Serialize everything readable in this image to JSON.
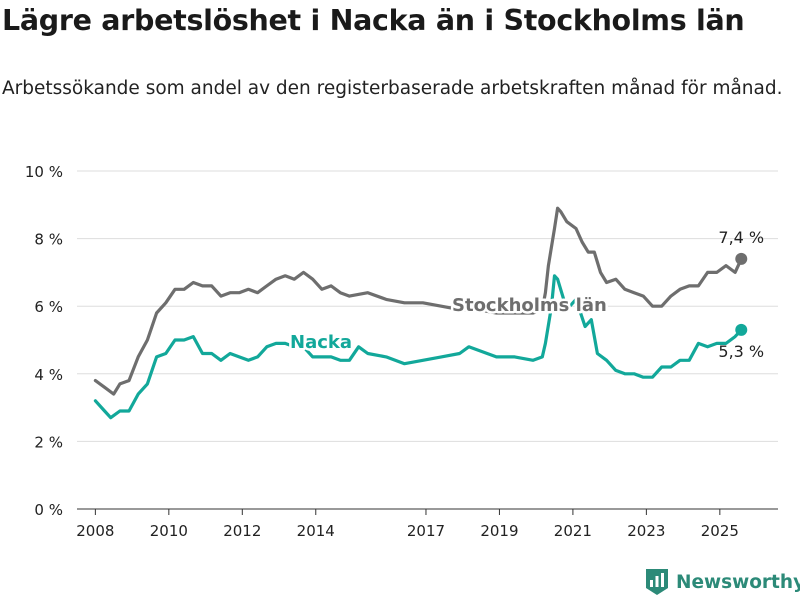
{
  "title": "Lägre arbetslöshet i Nacka än i Stockholms län",
  "subtitle": "Arbetssökande som andel av den registerbaserade arbetskraften månad för månad.",
  "logo": {
    "text": "Newsworthy",
    "icon": "bar-chart-logo-icon",
    "color": "#2c8a78"
  },
  "colors": {
    "nacka": "#12a89a",
    "stockholm": "#6e6e6e",
    "grid": "#dddddd",
    "text": "#222222"
  },
  "chart_data": {
    "type": "line",
    "ylim": [
      0,
      10
    ],
    "yticks": [
      {
        "value": 0,
        "label": "0 %"
      },
      {
        "value": 2,
        "label": "2 %"
      },
      {
        "value": 4,
        "label": "4 %"
      },
      {
        "value": 6,
        "label": "6 %"
      },
      {
        "value": 8,
        "label": "8 %"
      },
      {
        "value": 10,
        "label": "10 %"
      }
    ],
    "xlim": [
      "2007-07",
      "2026-08"
    ],
    "xticks": [
      {
        "value": "2008-01",
        "label": "2008"
      },
      {
        "value": "2010-01",
        "label": "2010"
      },
      {
        "value": "2012-01",
        "label": "2012"
      },
      {
        "value": "2014-01",
        "label": "2014"
      },
      {
        "value": "2017-01",
        "label": "2017"
      },
      {
        "value": "2019-01",
        "label": "2019"
      },
      {
        "value": "2021-01",
        "label": "2021"
      },
      {
        "value": "2023-01",
        "label": "2023"
      },
      {
        "value": "2025-01",
        "label": "2025"
      }
    ],
    "series": [
      {
        "name": "Stockholms län",
        "color": "#6e6e6e",
        "end_label": "7,4 %",
        "points": [
          [
            "2008-01",
            3.8
          ],
          [
            "2008-04",
            3.6
          ],
          [
            "2008-07",
            3.4
          ],
          [
            "2008-09",
            3.7
          ],
          [
            "2008-12",
            3.8
          ],
          [
            "2009-03",
            4.5
          ],
          [
            "2009-06",
            5.0
          ],
          [
            "2009-09",
            5.8
          ],
          [
            "2009-12",
            6.1
          ],
          [
            "2010-03",
            6.5
          ],
          [
            "2010-06",
            6.5
          ],
          [
            "2010-09",
            6.7
          ],
          [
            "2010-12",
            6.6
          ],
          [
            "2011-03",
            6.6
          ],
          [
            "2011-06",
            6.3
          ],
          [
            "2011-09",
            6.4
          ],
          [
            "2011-12",
            6.4
          ],
          [
            "2012-03",
            6.5
          ],
          [
            "2012-06",
            6.4
          ],
          [
            "2012-09",
            6.6
          ],
          [
            "2012-12",
            6.8
          ],
          [
            "2013-03",
            6.9
          ],
          [
            "2013-06",
            6.8
          ],
          [
            "2013-09",
            7.0
          ],
          [
            "2013-12",
            6.8
          ],
          [
            "2014-03",
            6.5
          ],
          [
            "2014-06",
            6.6
          ],
          [
            "2014-09",
            6.4
          ],
          [
            "2014-12",
            6.3
          ],
          [
            "2015-06",
            6.4
          ],
          [
            "2015-12",
            6.2
          ],
          [
            "2016-06",
            6.1
          ],
          [
            "2016-12",
            6.1
          ],
          [
            "2017-06",
            6.0
          ],
          [
            "2017-12",
            5.9
          ],
          [
            "2018-06",
            5.9
          ],
          [
            "2018-12",
            5.8
          ],
          [
            "2019-06",
            5.8
          ],
          [
            "2019-12",
            5.8
          ],
          [
            "2020-03",
            5.9
          ],
          [
            "2020-04",
            6.4
          ],
          [
            "2020-05",
            7.2
          ],
          [
            "2020-07",
            8.3
          ],
          [
            "2020-08",
            8.9
          ],
          [
            "2020-09",
            8.8
          ],
          [
            "2020-11",
            8.5
          ],
          [
            "2021-02",
            8.3
          ],
          [
            "2021-04",
            7.9
          ],
          [
            "2021-06",
            7.6
          ],
          [
            "2021-08",
            7.6
          ],
          [
            "2021-10",
            7.0
          ],
          [
            "2021-12",
            6.7
          ],
          [
            "2022-03",
            6.8
          ],
          [
            "2022-06",
            6.5
          ],
          [
            "2022-09",
            6.4
          ],
          [
            "2022-12",
            6.3
          ],
          [
            "2023-03",
            6.0
          ],
          [
            "2023-06",
            6.0
          ],
          [
            "2023-09",
            6.3
          ],
          [
            "2023-12",
            6.5
          ],
          [
            "2024-03",
            6.6
          ],
          [
            "2024-06",
            6.6
          ],
          [
            "2024-09",
            7.0
          ],
          [
            "2024-12",
            7.0
          ],
          [
            "2025-03",
            7.2
          ],
          [
            "2025-06",
            7.0
          ],
          [
            "2025-08",
            7.4
          ]
        ]
      },
      {
        "name": "Nacka",
        "color": "#12a89a",
        "end_label": "5,3 %",
        "points": [
          [
            "2008-01",
            3.2
          ],
          [
            "2008-04",
            2.9
          ],
          [
            "2008-06",
            2.7
          ],
          [
            "2008-09",
            2.9
          ],
          [
            "2008-12",
            2.9
          ],
          [
            "2009-03",
            3.4
          ],
          [
            "2009-06",
            3.7
          ],
          [
            "2009-09",
            4.5
          ],
          [
            "2009-12",
            4.6
          ],
          [
            "2010-03",
            5.0
          ],
          [
            "2010-06",
            5.0
          ],
          [
            "2010-09",
            5.1
          ],
          [
            "2010-12",
            4.6
          ],
          [
            "2011-03",
            4.6
          ],
          [
            "2011-06",
            4.4
          ],
          [
            "2011-09",
            4.6
          ],
          [
            "2011-12",
            4.5
          ],
          [
            "2012-03",
            4.4
          ],
          [
            "2012-06",
            4.5
          ],
          [
            "2012-09",
            4.8
          ],
          [
            "2012-12",
            4.9
          ],
          [
            "2013-03",
            4.9
          ],
          [
            "2013-06",
            4.8
          ],
          [
            "2013-09",
            4.8
          ],
          [
            "2013-12",
            4.5
          ],
          [
            "2014-03",
            4.5
          ],
          [
            "2014-06",
            4.5
          ],
          [
            "2014-09",
            4.4
          ],
          [
            "2014-12",
            4.4
          ],
          [
            "2015-03",
            4.8
          ],
          [
            "2015-06",
            4.6
          ],
          [
            "2015-12",
            4.5
          ],
          [
            "2016-06",
            4.3
          ],
          [
            "2016-12",
            4.4
          ],
          [
            "2017-06",
            4.5
          ],
          [
            "2017-12",
            4.6
          ],
          [
            "2018-03",
            4.8
          ],
          [
            "2018-06",
            4.7
          ],
          [
            "2018-09",
            4.6
          ],
          [
            "2018-12",
            4.5
          ],
          [
            "2019-06",
            4.5
          ],
          [
            "2019-12",
            4.4
          ],
          [
            "2020-03",
            4.5
          ],
          [
            "2020-04",
            4.9
          ],
          [
            "2020-06",
            6.0
          ],
          [
            "2020-07",
            6.9
          ],
          [
            "2020-08",
            6.8
          ],
          [
            "2020-10",
            6.2
          ],
          [
            "2020-12",
            6.0
          ],
          [
            "2021-02",
            6.2
          ],
          [
            "2021-05",
            5.4
          ],
          [
            "2021-07",
            5.6
          ],
          [
            "2021-09",
            4.6
          ],
          [
            "2021-12",
            4.4
          ],
          [
            "2022-03",
            4.1
          ],
          [
            "2022-06",
            4.0
          ],
          [
            "2022-09",
            4.0
          ],
          [
            "2022-12",
            3.9
          ],
          [
            "2023-03",
            3.9
          ],
          [
            "2023-06",
            4.2
          ],
          [
            "2023-09",
            4.2
          ],
          [
            "2023-12",
            4.4
          ],
          [
            "2024-03",
            4.4
          ],
          [
            "2024-06",
            4.9
          ],
          [
            "2024-09",
            4.8
          ],
          [
            "2024-12",
            4.9
          ],
          [
            "2025-03",
            4.9
          ],
          [
            "2025-06",
            5.1
          ],
          [
            "2025-08",
            5.3
          ]
        ]
      }
    ]
  }
}
